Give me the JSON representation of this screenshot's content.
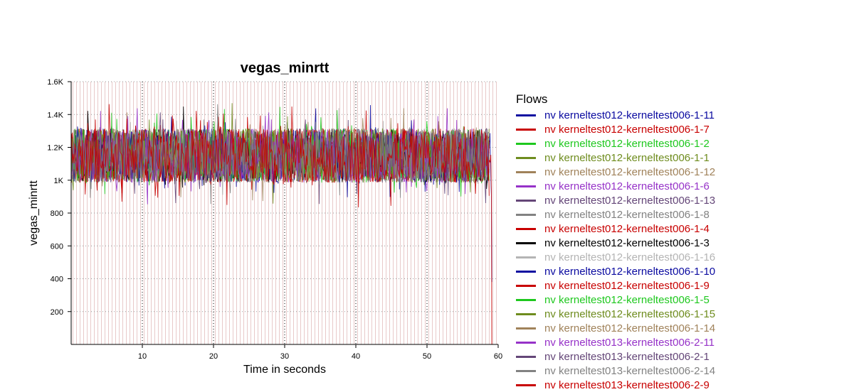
{
  "chart_data": {
    "type": "line",
    "title": "vegas_minrtt",
    "xlabel": "Time in seconds",
    "ylabel": "vegas_minrtt",
    "xlim": [
      0,
      60
    ],
    "ylim": [
      0,
      1600
    ],
    "x_ticks": [
      10,
      20,
      30,
      40,
      50,
      60
    ],
    "y_ticks": [
      200,
      400,
      600,
      800,
      1000,
      1200,
      1400,
      1600
    ],
    "y_tick_labels": [
      "200",
      "400",
      "600",
      "800",
      "1K",
      "1.2K",
      "1.4K",
      "1.6K"
    ],
    "grid": true,
    "legend_placement": "right",
    "legend_title": "Flows",
    "series": [
      {
        "name": "nv kerneltest012-kerneltest006-1-11",
        "color": "#0a0aa0",
        "range": [
          1000,
          1300
        ],
        "end": 59.0
      },
      {
        "name": "nv kerneltest012-kerneltest006-1-7",
        "color": "#c80000",
        "range": [
          1000,
          1300
        ],
        "end": 58.8
      },
      {
        "name": "nv kerneltest012-kerneltest006-1-2",
        "color": "#1ec81e",
        "range": [
          1000,
          1300
        ],
        "end": 58.8
      },
      {
        "name": "nv kerneltest012-kerneltest006-1-1",
        "color": "#6e8c1e",
        "range": [
          1000,
          1300
        ],
        "end": 58.8
      },
      {
        "name": "nv kerneltest012-kerneltest006-1-12",
        "color": "#a0825a",
        "range": [
          1000,
          1300
        ],
        "end": 58.8
      },
      {
        "name": "nv kerneltest012-kerneltest006-1-6",
        "color": "#9632c8",
        "range": [
          1000,
          1300
        ],
        "end": 58.8
      },
      {
        "name": "nv kerneltest012-kerneltest006-1-13",
        "color": "#644678",
        "range": [
          1000,
          1300
        ],
        "end": 58.8
      },
      {
        "name": "nv kerneltest012-kerneltest006-1-8",
        "color": "#828282",
        "range": [
          1000,
          1300
        ],
        "end": 58.8
      },
      {
        "name": "nv kerneltest012-kerneltest006-1-4",
        "color": "#c80000",
        "range": [
          1000,
          1300
        ],
        "end": 58.8
      },
      {
        "name": "nv kerneltest012-kerneltest006-1-3",
        "color": "#000000",
        "range": [
          1000,
          1300
        ],
        "end": 58.8
      },
      {
        "name": "nv kerneltest012-kerneltest006-1-16",
        "color": "#b4b4b4",
        "range": [
          1000,
          1300
        ],
        "end": 58.8
      },
      {
        "name": "nv kerneltest012-kerneltest006-1-10",
        "color": "#0a0aa0",
        "range": [
          1000,
          1300
        ],
        "end": 58.8
      },
      {
        "name": "nv kerneltest012-kerneltest006-1-9",
        "color": "#c80000",
        "range": [
          1000,
          1300
        ],
        "end": 58.8
      },
      {
        "name": "nv kerneltest012-kerneltest006-1-5",
        "color": "#1ec81e",
        "range": [
          1000,
          1300
        ],
        "end": 58.8
      },
      {
        "name": "nv kerneltest012-kerneltest006-1-15",
        "color": "#6e8c1e",
        "range": [
          1000,
          1300
        ],
        "end": 58.8
      },
      {
        "name": "nv kerneltest012-kerneltest006-1-14",
        "color": "#a0825a",
        "range": [
          1000,
          1300
        ],
        "end": 58.8
      },
      {
        "name": "nv kerneltest013-kerneltest006-2-11",
        "color": "#9632c8",
        "range": [
          1000,
          1300
        ],
        "end": 58.8
      },
      {
        "name": "nv kerneltest013-kerneltest006-2-1",
        "color": "#644678",
        "range": [
          1000,
          1300
        ],
        "end": 58.8
      },
      {
        "name": "nv kerneltest013-kerneltest006-2-14",
        "color": "#828282",
        "range": [
          1000,
          1300
        ],
        "end": 58.8
      },
      {
        "name": "nv kerneltest013-kerneltest006-2-9",
        "color": "#c80000",
        "range": [
          1000,
          1300
        ],
        "end": 59.0
      }
    ]
  }
}
